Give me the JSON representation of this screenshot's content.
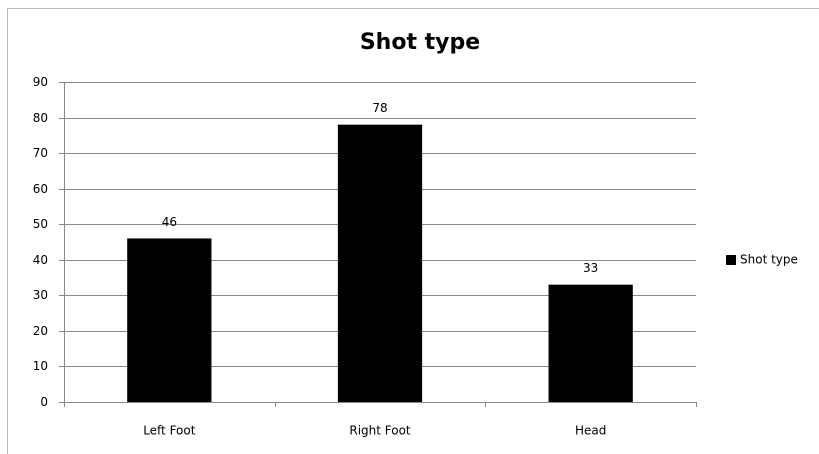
{
  "chart_data": {
    "type": "bar",
    "title": "Shot type",
    "categories": [
      "Left Foot",
      "Right Foot",
      "Head"
    ],
    "series": [
      {
        "name": "Shot type",
        "color": "#000000",
        "values": [
          46,
          78,
          33
        ]
      }
    ],
    "ylim": [
      0,
      90
    ],
    "yticks": [
      0,
      10,
      20,
      30,
      40,
      50,
      60,
      70,
      80,
      90
    ],
    "grid": true,
    "legend": "right",
    "data_labels": true
  }
}
